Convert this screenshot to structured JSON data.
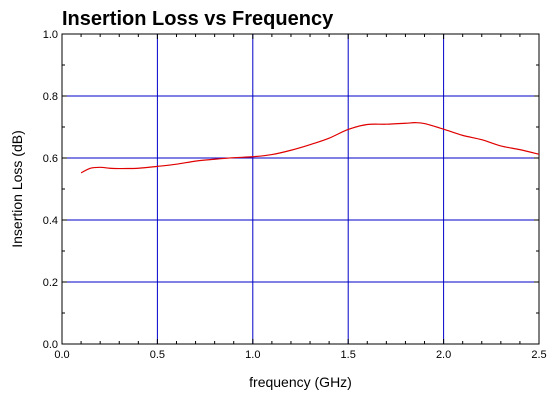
{
  "chart_data": {
    "type": "line",
    "title": "Insertion Loss vs Frequency",
    "xlabel": "frequency (GHz)",
    "ylabel": "Insertion Loss (dB)",
    "xlim": [
      0.0,
      2.5
    ],
    "ylim": [
      0.0,
      1.0
    ],
    "xticks": [
      "0.0",
      "0.5",
      "1.0",
      "1.5",
      "2.0",
      "2.5"
    ],
    "yticks": [
      "0.0",
      "0.2",
      "0.4",
      "0.6",
      "0.8",
      "1.0"
    ],
    "grid": true,
    "colors": {
      "series": "#e00000",
      "grid": "#0000c8",
      "axis": "#000000"
    },
    "series": [
      {
        "x": [
          0.1,
          0.15,
          0.2,
          0.25,
          0.3,
          0.4,
          0.5,
          0.6,
          0.7,
          0.8,
          0.9,
          1.0,
          1.1,
          1.2,
          1.3,
          1.4,
          1.5,
          1.6,
          1.7,
          1.8,
          1.85,
          1.9,
          2.0,
          2.1,
          2.2,
          2.3,
          2.4,
          2.5
        ],
        "y": [
          0.552,
          0.567,
          0.57,
          0.567,
          0.566,
          0.567,
          0.573,
          0.58,
          0.59,
          0.596,
          0.601,
          0.604,
          0.611,
          0.625,
          0.643,
          0.664,
          0.692,
          0.708,
          0.709,
          0.712,
          0.714,
          0.711,
          0.693,
          0.673,
          0.659,
          0.639,
          0.627,
          0.612
        ]
      }
    ]
  }
}
